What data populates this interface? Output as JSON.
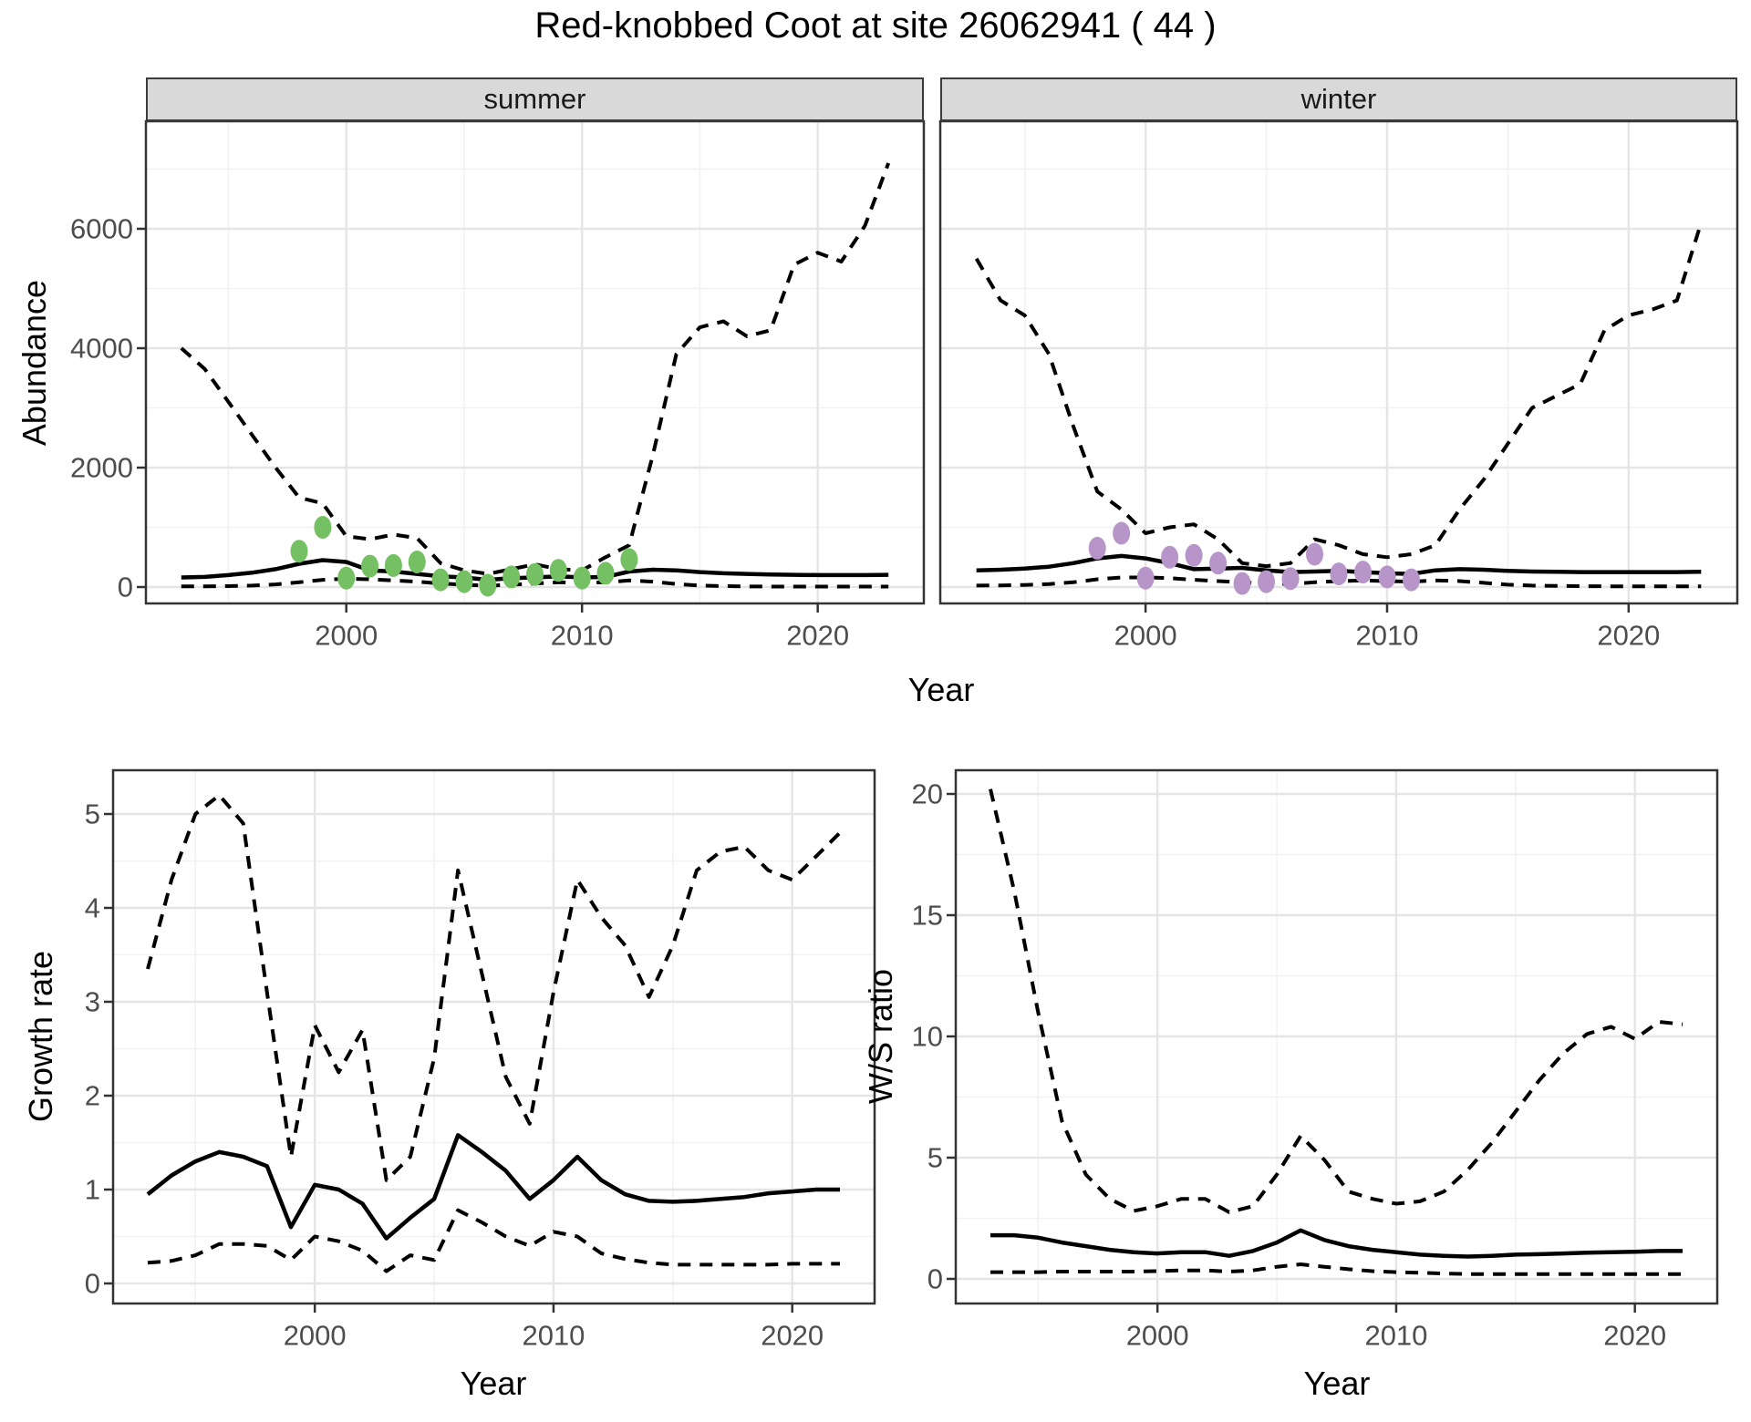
{
  "title": "Red-knobbed Coot at site 26062941 ( 44 )",
  "facets": [
    "summer",
    "winter"
  ],
  "axes": {
    "abundance_label": "Abundance",
    "top_x_label": "Year",
    "growth_y_label": "Growth rate",
    "growth_x_label": "Year",
    "ws_y_label": "W/S ratio",
    "ws_x_label": "Year"
  },
  "colors": {
    "summer_points": "#74c062",
    "winter_points": "#b795c8",
    "line": "#000000",
    "strip_bg": "#d9d9d9",
    "grid_major": "#e5e5e5",
    "grid_minor": "#f2f2f2",
    "tick_text": "#4d4d4d",
    "border": "#333333"
  },
  "chart_data": [
    {
      "type": "line",
      "panel": "summer",
      "facet": "summer",
      "title": "Abundance - summer",
      "xlabel": "Year",
      "ylabel": "Abundance",
      "ylim": [
        0,
        7100
      ],
      "yticks": [
        0,
        2000,
        4000,
        6000
      ],
      "xticks": [
        2000,
        2010,
        2020
      ],
      "grid": true,
      "legend": "none",
      "x": [
        1993,
        1994,
        1995,
        1996,
        1997,
        1998,
        1999,
        2000,
        2001,
        2002,
        2003,
        2004,
        2005,
        2006,
        2007,
        2008,
        2009,
        2010,
        2011,
        2012,
        2013,
        2014,
        2015,
        2016,
        2017,
        2018,
        2019,
        2020,
        2021,
        2022,
        2023
      ],
      "series": [
        {
          "name": "upper_ci",
          "style": "dashed",
          "values": [
            4000,
            3650,
            3100,
            2550,
            2000,
            1500,
            1400,
            850,
            800,
            880,
            820,
            400,
            280,
            220,
            300,
            380,
            300,
            280,
            500,
            700,
            2200,
            3900,
            4350,
            4450,
            4200,
            4300,
            5400,
            5600,
            5450,
            6050,
            7100
          ]
        },
        {
          "name": "estimate",
          "style": "solid",
          "values": [
            160,
            170,
            200,
            240,
            300,
            390,
            450,
            420,
            280,
            260,
            220,
            180,
            160,
            120,
            150,
            160,
            180,
            160,
            170,
            260,
            290,
            280,
            250,
            230,
            220,
            210,
            205,
            200,
            200,
            200,
            205
          ]
        },
        {
          "name": "lower_ci",
          "style": "dashed",
          "values": [
            10,
            10,
            15,
            25,
            45,
            80,
            120,
            140,
            130,
            110,
            90,
            60,
            40,
            20,
            40,
            60,
            80,
            70,
            80,
            110,
            90,
            50,
            25,
            15,
            10,
            8,
            8,
            8,
            8,
            8,
            8
          ]
        }
      ],
      "points": {
        "name": "observed_counts_summer",
        "color": "#74c062",
        "x": [
          1998,
          1999,
          2000,
          2001,
          2002,
          2003,
          2004,
          2005,
          2006,
          2007,
          2008,
          2009,
          2010,
          2011,
          2012
        ],
        "y": [
          600,
          1000,
          150,
          350,
          360,
          420,
          120,
          90,
          30,
          170,
          210,
          280,
          150,
          230,
          460
        ]
      }
    },
    {
      "type": "line",
      "panel": "winter",
      "facet": "winter",
      "title": "Abundance - winter",
      "xlabel": "Year",
      "ylabel": "Abundance",
      "ylim": [
        0,
        7100
      ],
      "yticks": [
        0,
        2000,
        4000,
        6000
      ],
      "xticks": [
        2000,
        2010,
        2020
      ],
      "grid": true,
      "legend": "none",
      "x": [
        1993,
        1994,
        1995,
        1996,
        1997,
        1998,
        1999,
        2000,
        2001,
        2002,
        2003,
        2004,
        2005,
        2006,
        2007,
        2008,
        2009,
        2010,
        2011,
        2012,
        2013,
        2014,
        2015,
        2016,
        2017,
        2018,
        2019,
        2020,
        2021,
        2022,
        2023
      ],
      "series": [
        {
          "name": "upper_ci",
          "style": "dashed",
          "values": [
            5500,
            4800,
            4550,
            3900,
            2700,
            1600,
            1300,
            900,
            1000,
            1050,
            800,
            400,
            350,
            400,
            800,
            700,
            550,
            500,
            550,
            700,
            1300,
            1800,
            2400,
            3000,
            3200,
            3400,
            4300,
            4550,
            4650,
            4800,
            6100
          ]
        },
        {
          "name": "estimate",
          "style": "solid",
          "values": [
            280,
            290,
            310,
            340,
            400,
            480,
            520,
            480,
            400,
            300,
            310,
            320,
            280,
            250,
            260,
            270,
            250,
            230,
            220,
            280,
            300,
            290,
            270,
            260,
            255,
            250,
            250,
            250,
            250,
            250,
            255
          ]
        },
        {
          "name": "lower_ci",
          "style": "dashed",
          "values": [
            25,
            28,
            35,
            50,
            80,
            130,
            160,
            160,
            150,
            120,
            100,
            80,
            60,
            50,
            80,
            100,
            110,
            100,
            90,
            110,
            100,
            70,
            40,
            25,
            18,
            15,
            12,
            12,
            12,
            12,
            12
          ]
        }
      ],
      "points": {
        "name": "observed_counts_winter",
        "color": "#b795c8",
        "x": [
          1998,
          1999,
          2000,
          2001,
          2002,
          2003,
          2004,
          2005,
          2006,
          2007,
          2008,
          2009,
          2010,
          2011
        ],
        "y": [
          650,
          900,
          150,
          500,
          530,
          400,
          60,
          90,
          140,
          550,
          220,
          250,
          170,
          120
        ]
      }
    },
    {
      "type": "line",
      "panel": "growth",
      "title": "Growth rate",
      "xlabel": "Year",
      "ylabel": "Growth rate",
      "ylim": [
        0,
        5.4
      ],
      "yticks": [
        0,
        1,
        2,
        3,
        4,
        5
      ],
      "xticks": [
        2000,
        2010,
        2020
      ],
      "grid": true,
      "legend": "none",
      "x": [
        1993,
        1994,
        1995,
        1996,
        1997,
        1998,
        1999,
        2000,
        2001,
        2002,
        2003,
        2004,
        2005,
        2006,
        2007,
        2008,
        2009,
        2010,
        2011,
        2012,
        2013,
        2014,
        2015,
        2016,
        2017,
        2018,
        2019,
        2020,
        2021,
        2022
      ],
      "series": [
        {
          "name": "upper_ci",
          "style": "dashed",
          "values": [
            3.35,
            4.3,
            5.0,
            5.2,
            4.9,
            3.1,
            1.35,
            2.75,
            2.25,
            2.7,
            1.1,
            1.35,
            2.4,
            4.4,
            3.3,
            2.2,
            1.7,
            3.1,
            4.3,
            3.9,
            3.6,
            3.05,
            3.6,
            4.4,
            4.6,
            4.65,
            4.4,
            4.3,
            4.55,
            4.8
          ]
        },
        {
          "name": "estimate",
          "style": "solid",
          "values": [
            0.95,
            1.15,
            1.3,
            1.4,
            1.35,
            1.25,
            0.6,
            1.05,
            1.0,
            0.85,
            0.48,
            0.7,
            0.9,
            1.58,
            1.4,
            1.2,
            0.9,
            1.1,
            1.35,
            1.1,
            0.95,
            0.88,
            0.87,
            0.88,
            0.9,
            0.92,
            0.96,
            0.98,
            1.0,
            1.0
          ]
        },
        {
          "name": "lower_ci",
          "style": "dashed",
          "values": [
            0.22,
            0.24,
            0.3,
            0.42,
            0.42,
            0.4,
            0.25,
            0.5,
            0.45,
            0.35,
            0.13,
            0.3,
            0.25,
            0.78,
            0.65,
            0.5,
            0.4,
            0.55,
            0.5,
            0.32,
            0.26,
            0.22,
            0.2,
            0.2,
            0.2,
            0.2,
            0.2,
            0.21,
            0.21,
            0.21
          ]
        }
      ]
    },
    {
      "type": "line",
      "panel": "ws",
      "title": "W/S ratio",
      "xlabel": "Year",
      "ylabel": "W/S ratio",
      "ylim": [
        0,
        21
      ],
      "yticks": [
        0,
        5,
        10,
        15,
        20
      ],
      "xticks": [
        2000,
        2010,
        2020
      ],
      "grid": true,
      "legend": "none",
      "x": [
        1993,
        1994,
        1995,
        1996,
        1997,
        1998,
        1999,
        2000,
        2001,
        2002,
        2003,
        2004,
        2005,
        2006,
        2007,
        2008,
        2009,
        2010,
        2011,
        2012,
        2013,
        2014,
        2015,
        2016,
        2017,
        2018,
        2019,
        2020,
        2021,
        2022
      ],
      "series": [
        {
          "name": "upper_ci",
          "style": "dashed",
          "values": [
            20.2,
            16.0,
            11.0,
            6.5,
            4.3,
            3.3,
            2.8,
            3.0,
            3.3,
            3.3,
            2.75,
            3.0,
            4.3,
            5.9,
            4.9,
            3.6,
            3.3,
            3.1,
            3.2,
            3.6,
            4.5,
            5.6,
            6.9,
            8.2,
            9.3,
            10.1,
            10.4,
            9.9,
            10.6,
            10.5
          ]
        },
        {
          "name": "estimate",
          "style": "solid",
          "values": [
            1.8,
            1.8,
            1.7,
            1.5,
            1.35,
            1.2,
            1.1,
            1.05,
            1.1,
            1.1,
            0.95,
            1.15,
            1.5,
            2.0,
            1.6,
            1.35,
            1.2,
            1.1,
            1.0,
            0.95,
            0.92,
            0.95,
            1.0,
            1.02,
            1.05,
            1.08,
            1.1,
            1.12,
            1.15,
            1.15
          ]
        },
        {
          "name": "lower_ci",
          "style": "dashed",
          "values": [
            0.28,
            0.28,
            0.28,
            0.3,
            0.3,
            0.3,
            0.3,
            0.32,
            0.35,
            0.35,
            0.3,
            0.35,
            0.5,
            0.6,
            0.5,
            0.4,
            0.32,
            0.28,
            0.25,
            0.22,
            0.2,
            0.2,
            0.2,
            0.2,
            0.2,
            0.2,
            0.2,
            0.2,
            0.2,
            0.2
          ]
        }
      ]
    }
  ]
}
